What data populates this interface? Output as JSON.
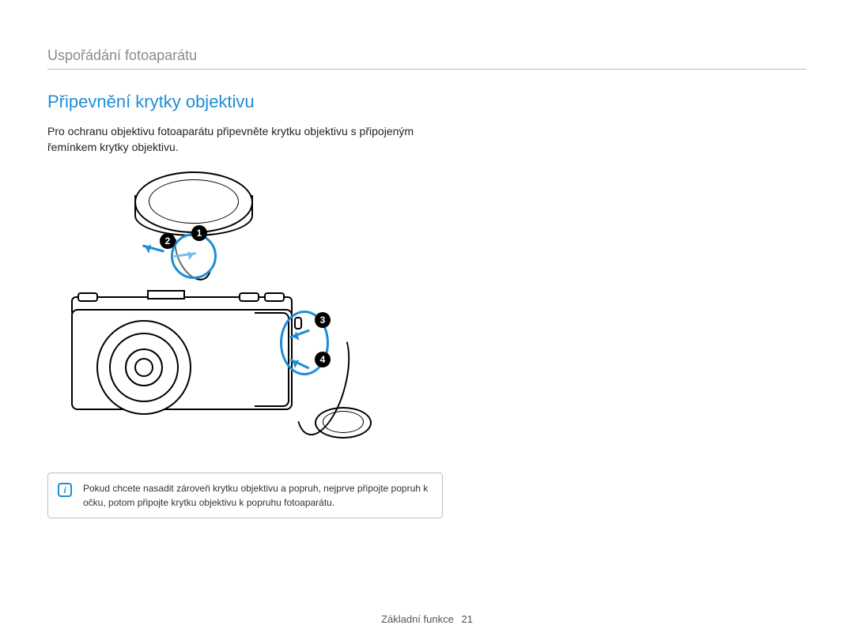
{
  "header": {
    "section_title": "Uspořádání fotoaparátu"
  },
  "main": {
    "title": "Připevnění krytky objektivu",
    "body": "Pro ochranu objektivu fotoaparátu připevněte krytku objektivu s připojeným řemínkem krytky objektivu."
  },
  "diagram": {
    "type": "infographic",
    "callout_color": "#1f8dd6",
    "line_color": "#000000",
    "badge_bg": "#000000",
    "badge_fg": "#ffffff",
    "lenscap": {
      "badges": {
        "1": "1",
        "2": "2"
      }
    },
    "camera": {
      "badges": {
        "3": "3",
        "4": "4"
      }
    }
  },
  "note": {
    "icon_label": "i",
    "text": "Pokud chcete nasadit zároveň krytku objektivu a popruh, nejprve připojte popruh k očku, potom připojte krytku objektivu k popruhu fotoaparátu."
  },
  "footer": {
    "label": "Základní funkce",
    "page_number": "21"
  },
  "colors": {
    "title_color": "#1f8dd6",
    "section_color": "#8a8a8a",
    "text_color": "#222222",
    "border_color": "#bfbfbf",
    "background": "#ffffff"
  }
}
